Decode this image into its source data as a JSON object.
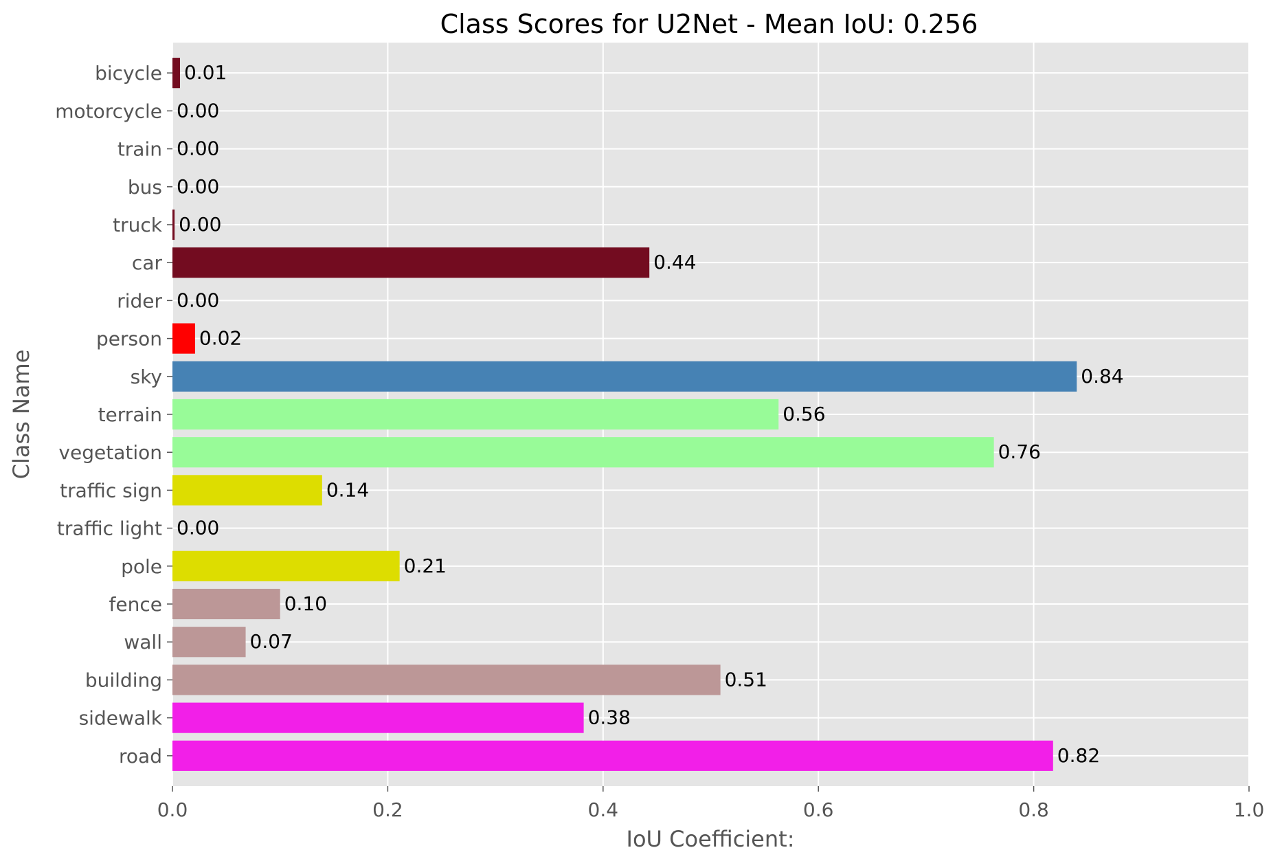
{
  "chart_data": {
    "type": "bar",
    "orientation": "horizontal",
    "title": "Class Scores for U2Net - Mean IoU: 0.256",
    "xlabel": "IoU Coefficient:",
    "ylabel": "Class Name",
    "xlim": [
      0,
      1
    ],
    "xticks": [
      "0.0",
      "0.2",
      "0.4",
      "0.6",
      "0.8",
      "1.0"
    ],
    "xtick_values": [
      0,
      0.2,
      0.4,
      0.6,
      0.8,
      1.0
    ],
    "grid": true,
    "style": "ggplot",
    "bars": [
      {
        "category": "road",
        "value": 0.818,
        "label": "0.82",
        "color": "#F21FE8"
      },
      {
        "category": "sidewalk",
        "value": 0.382,
        "label": "0.38",
        "color": "#F21FE8"
      },
      {
        "category": "building",
        "value": 0.509,
        "label": "0.51",
        "color": "#BC9797"
      },
      {
        "category": "wall",
        "value": 0.068,
        "label": "0.07",
        "color": "#BC9797"
      },
      {
        "category": "fence",
        "value": 0.1,
        "label": "0.10",
        "color": "#BC9797"
      },
      {
        "category": "pole",
        "value": 0.211,
        "label": "0.21",
        "color": "#DDDD00"
      },
      {
        "category": "traffic light",
        "value": 0.0,
        "label": "0.00",
        "color": "#DDDD00"
      },
      {
        "category": "traffic sign",
        "value": 0.139,
        "label": "0.14",
        "color": "#DDDD00"
      },
      {
        "category": "vegetation",
        "value": 0.763,
        "label": "0.76",
        "color": "#98FB98"
      },
      {
        "category": "terrain",
        "value": 0.563,
        "label": "0.56",
        "color": "#98FB98"
      },
      {
        "category": "sky",
        "value": 0.84,
        "label": "0.84",
        "color": "#4682B4"
      },
      {
        "category": "person",
        "value": 0.021,
        "label": "0.02",
        "color": "#FF0000"
      },
      {
        "category": "rider",
        "value": 0.0,
        "label": "0.00",
        "color": "#FF0000"
      },
      {
        "category": "car",
        "value": 0.443,
        "label": "0.44",
        "color": "#730C20"
      },
      {
        "category": "truck",
        "value": 0.002,
        "label": "0.00",
        "color": "#730C20"
      },
      {
        "category": "bus",
        "value": 0.0,
        "label": "0.00",
        "color": "#730C20"
      },
      {
        "category": "train",
        "value": 0.0,
        "label": "0.00",
        "color": "#730C20"
      },
      {
        "category": "motorcycle",
        "value": 0.0,
        "label": "0.00",
        "color": "#730C20"
      },
      {
        "category": "bicycle",
        "value": 0.007,
        "label": "0.01",
        "color": "#730C20"
      }
    ]
  },
  "colors": {
    "plot_background": "#E5E5E5",
    "grid": "#FFFFFF",
    "tick_text": "#555555",
    "label_text": "#000000"
  }
}
